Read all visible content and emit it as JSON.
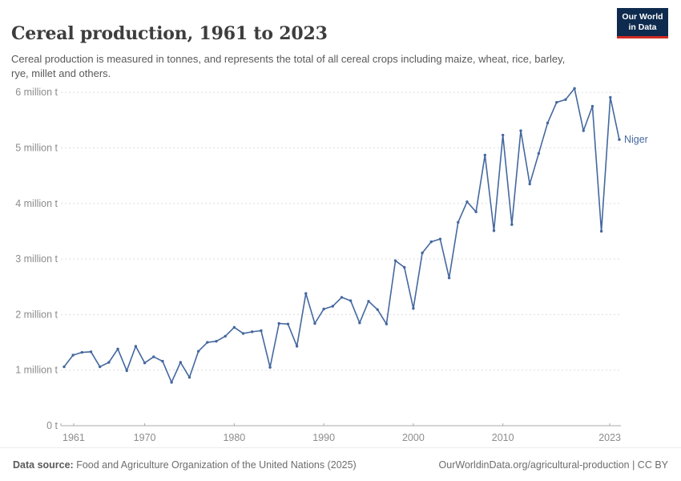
{
  "header": {
    "title": "Cereal production, 1961 to 2023",
    "subtitle": "Cereal production is measured in tonnes, and represents the total of all cereal crops including maize, wheat, rice, barley, rye, millet and others.",
    "logo": {
      "line1": "Our World",
      "line2": "in Data",
      "bg_color": "#0e2a4e",
      "accent_color": "#cf2a23"
    }
  },
  "chart_data": {
    "type": "line",
    "title": "Cereal production, 1961 to 2023",
    "unit": "million tonnes",
    "xlabel": "",
    "ylabel": "",
    "x_range": [
      1961,
      2023
    ],
    "ylim": [
      0,
      6.2
    ],
    "grid": "horizontal-dashed",
    "legend_position": "end-of-line-label",
    "x_ticks": [
      1961,
      1970,
      1980,
      1990,
      2000,
      2010,
      2023
    ],
    "y_ticks": [
      {
        "value": 0,
        "label": "0 t"
      },
      {
        "value": 1,
        "label": "1 million t"
      },
      {
        "value": 2,
        "label": "2 million t"
      },
      {
        "value": 3,
        "label": "3 million t"
      },
      {
        "value": 4,
        "label": "4 million t"
      },
      {
        "value": 5,
        "label": "5 million t"
      },
      {
        "value": 6,
        "label": "6 million t"
      }
    ],
    "series": [
      {
        "name": "Niger",
        "color": "#44689f",
        "x": [
          1961,
          1962,
          1963,
          1964,
          1965,
          1966,
          1967,
          1968,
          1969,
          1970,
          1971,
          1972,
          1973,
          1974,
          1975,
          1976,
          1977,
          1978,
          1979,
          1980,
          1981,
          1982,
          1983,
          1984,
          1985,
          1986,
          1987,
          1988,
          1989,
          1990,
          1991,
          1992,
          1993,
          1994,
          1995,
          1996,
          1997,
          1998,
          1999,
          2000,
          2001,
          2002,
          2003,
          2004,
          2005,
          2006,
          2007,
          2008,
          2009,
          2010,
          2011,
          2012,
          2013,
          2014,
          2015,
          2016,
          2017,
          2018,
          2019,
          2020,
          2021,
          2022,
          2023
        ],
        "values": [
          1.06,
          1.27,
          1.32,
          1.33,
          1.06,
          1.14,
          1.38,
          0.99,
          1.43,
          1.13,
          1.24,
          1.16,
          0.78,
          1.14,
          0.87,
          1.34,
          1.5,
          1.52,
          1.61,
          1.77,
          1.66,
          1.69,
          1.71,
          1.05,
          1.84,
          1.83,
          1.43,
          2.38,
          1.84,
          2.1,
          2.15,
          2.31,
          2.25,
          1.85,
          2.24,
          2.09,
          1.83,
          2.97,
          2.85,
          2.11,
          3.11,
          3.31,
          3.36,
          2.66,
          3.66,
          4.03,
          3.85,
          4.87,
          3.51,
          5.23,
          3.62,
          5.31,
          4.35,
          4.9,
          5.45,
          5.82,
          5.87,
          6.07,
          5.31,
          5.75,
          3.5,
          5.91,
          5.15
        ]
      }
    ]
  },
  "footer": {
    "datasource_label": "Data source:",
    "datasource": " Food and Agriculture Organization of the United Nations (2025)",
    "link": "OurWorldinData.org/agricultural-production | CC BY"
  }
}
